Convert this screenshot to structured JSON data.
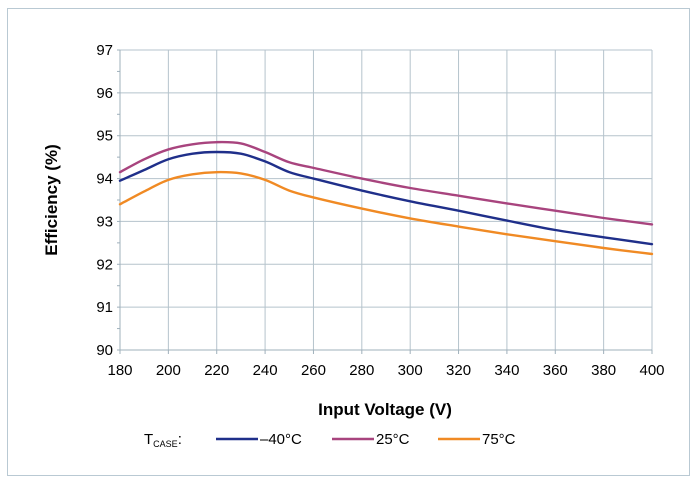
{
  "chart_data": {
    "type": "line",
    "title": "",
    "xlabel": "Input Voltage (V)",
    "ylabel": "Efficiency (%)",
    "xlim": [
      180,
      400
    ],
    "ylim": [
      90,
      97
    ],
    "x_ticks": [
      180,
      200,
      220,
      240,
      260,
      280,
      300,
      320,
      340,
      360,
      380,
      400
    ],
    "y_ticks": [
      90,
      91,
      92,
      93,
      94,
      95,
      96,
      97
    ],
    "grid": true,
    "legend_position": "bottom",
    "legend_prefix": {
      "main": "T",
      "sub": "CASE",
      "suffix": ":"
    },
    "series": [
      {
        "name": "–40°C",
        "color": "#1f2f8a",
        "x": [
          180,
          190,
          200,
          210,
          220,
          230,
          240,
          250,
          260,
          280,
          300,
          320,
          340,
          360,
          380,
          400
        ],
        "values": [
          93.95,
          94.2,
          94.45,
          94.58,
          94.62,
          94.58,
          94.4,
          94.15,
          94.0,
          93.72,
          93.47,
          93.25,
          93.02,
          92.8,
          92.63,
          92.47
        ]
      },
      {
        "name": "25°C",
        "color": "#a8447e",
        "x": [
          180,
          190,
          200,
          210,
          220,
          230,
          240,
          250,
          260,
          280,
          300,
          320,
          340,
          360,
          380,
          400
        ],
        "values": [
          94.15,
          94.45,
          94.68,
          94.8,
          94.85,
          94.82,
          94.62,
          94.38,
          94.25,
          94.0,
          93.78,
          93.6,
          93.42,
          93.25,
          93.08,
          92.93
        ]
      },
      {
        "name": "75°C",
        "color": "#f08a24",
        "x": [
          180,
          190,
          200,
          210,
          220,
          230,
          240,
          250,
          260,
          280,
          300,
          320,
          340,
          360,
          380,
          400
        ],
        "values": [
          93.4,
          93.7,
          93.97,
          94.1,
          94.15,
          94.12,
          93.97,
          93.72,
          93.56,
          93.3,
          93.07,
          92.88,
          92.7,
          92.54,
          92.38,
          92.24
        ]
      }
    ]
  }
}
